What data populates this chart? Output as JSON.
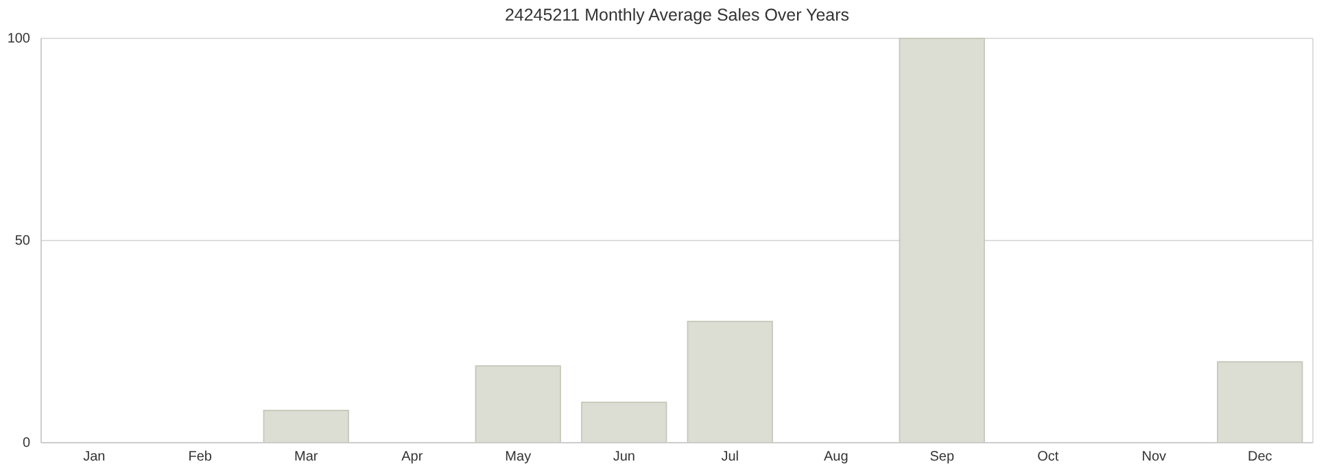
{
  "chart_data": {
    "type": "bar",
    "title": "24245211 Monthly Average Sales Over Years",
    "categories": [
      "Jan",
      "Feb",
      "Mar",
      "Apr",
      "May",
      "Jun",
      "Jul",
      "Aug",
      "Sep",
      "Oct",
      "Nov",
      "Dec"
    ],
    "values": [
      0,
      0,
      8,
      0,
      19,
      10,
      30,
      0,
      100,
      0,
      0,
      20
    ],
    "color": "#dcddd3",
    "ylim": [
      0,
      100
    ],
    "yticks": [
      0,
      50,
      100
    ],
    "grid": "y"
  }
}
